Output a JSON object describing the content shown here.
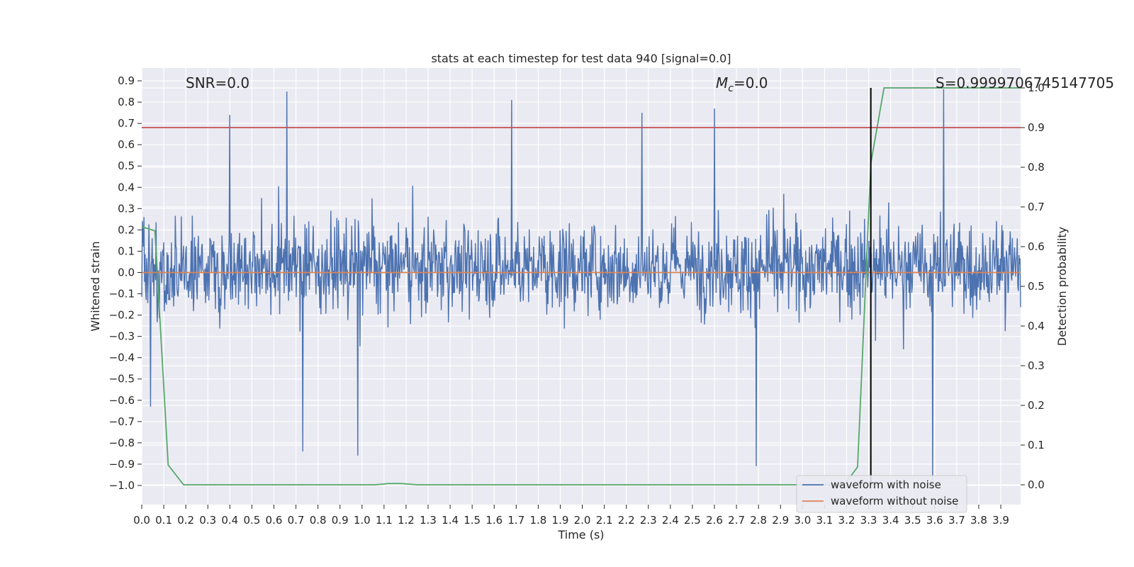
{
  "chart_data": {
    "type": "line",
    "title": "stats at each timestep for test data 940 [signal=0.0]",
    "xlabel": "Time (s)",
    "ylabel": "Whitened strain",
    "y2label": "Detection probability",
    "xlim": [
      0.0,
      3.99
    ],
    "ylim": [
      -1.09,
      0.96
    ],
    "y2lim": [
      -0.05,
      1.05
    ],
    "xticks": [
      "0.0",
      "0.1",
      "0.2",
      "0.3",
      "0.4",
      "0.5",
      "0.6",
      "0.7",
      "0.8",
      "0.9",
      "1.0",
      "1.1",
      "1.2",
      "1.3",
      "1.4",
      "1.5",
      "1.6",
      "1.7",
      "1.8",
      "1.9",
      "2.0",
      "2.1",
      "2.2",
      "2.3",
      "2.4",
      "2.5",
      "2.6",
      "2.7",
      "2.8",
      "2.9",
      "3.0",
      "3.1",
      "3.2",
      "3.3",
      "3.4",
      "3.5",
      "3.6",
      "3.7",
      "3.8",
      "3.9"
    ],
    "yticks": [
      "0.9",
      "0.8",
      "0.7",
      "0.6",
      "0.5",
      "0.4",
      "0.3",
      "0.2",
      "0.1",
      "0.0",
      "−0.1",
      "−0.2",
      "−0.3",
      "−0.4",
      "−0.5",
      "−0.6",
      "−0.7",
      "−0.8",
      "−0.9",
      "−1.0"
    ],
    "y2ticks": [
      "1.0",
      "0.9",
      "0.8",
      "0.7",
      "0.6",
      "0.5",
      "0.4",
      "0.3",
      "0.2",
      "0.1",
      "0.0"
    ],
    "grid": true,
    "legend_position": "lower-right",
    "annotations": {
      "snr": "SNR=0.0",
      "mc_symbol": "M",
      "mc_sub": "c",
      "mc_value": "=0.0",
      "s": "S=0.9999706745147705"
    },
    "series": [
      {
        "name": "waveform with noise",
        "color": "#4c72b0",
        "kind": "noise",
        "sample_count": 1600,
        "typical_range": [
          -0.45,
          0.5
        ],
        "notable_peaks": [
          {
            "x": 0.04,
            "y": -0.63
          },
          {
            "x": 0.4,
            "y": 0.74
          },
          {
            "x": 0.66,
            "y": 0.85
          },
          {
            "x": 0.73,
            "y": -0.84
          },
          {
            "x": 0.98,
            "y": -0.86
          },
          {
            "x": 1.68,
            "y": 0.81
          },
          {
            "x": 2.27,
            "y": 0.75
          },
          {
            "x": 2.6,
            "y": 0.77
          },
          {
            "x": 2.79,
            "y": -0.91
          },
          {
            "x": 3.59,
            "y": -0.98
          },
          {
            "x": 3.64,
            "y": 0.86
          }
        ]
      },
      {
        "name": "waveform without noise",
        "color": "#dd8452",
        "kind": "constant",
        "y": 0.0
      },
      {
        "name": "",
        "color": "#55a868",
        "axis": "right",
        "x": [
          0.0,
          0.06,
          0.12,
          0.19,
          1.06,
          1.12,
          1.18,
          1.25,
          3.19,
          3.25,
          3.31,
          3.37,
          3.99
        ],
        "y": [
          0.65,
          0.64,
          0.05,
          0.0,
          0.0,
          0.003,
          0.003,
          0.0,
          0.0,
          0.045,
          0.81,
          1.0,
          1.0
        ]
      }
    ],
    "threshold_line": {
      "color": "#c44e52",
      "y2": 0.9
    },
    "vertical_marker": {
      "color": "#000000",
      "x": 3.31,
      "y2_range": [
        0.0,
        1.0
      ]
    }
  }
}
